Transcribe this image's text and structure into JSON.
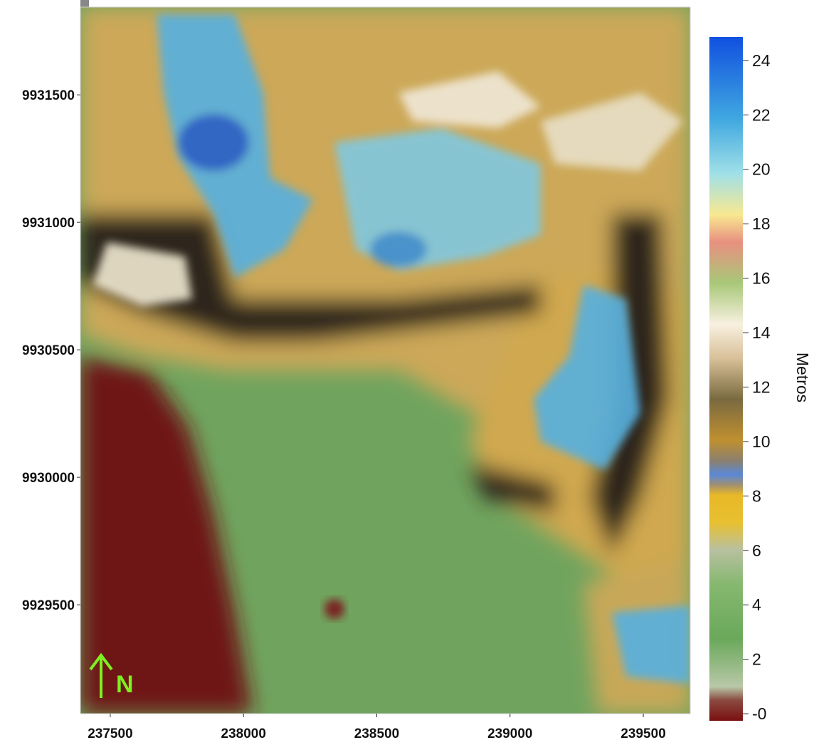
{
  "map": {
    "x_axis": {
      "lim": [
        237388,
        239676
      ],
      "ticks": [
        237500,
        238000,
        238500,
        239000,
        239500
      ]
    },
    "y_axis": {
      "lim": [
        9929073,
        9931844
      ],
      "ticks": [
        9929500,
        9930000,
        9930500,
        9931000,
        9931500
      ]
    },
    "north_label": "N"
  },
  "colorbar": {
    "label": "Metros",
    "lim": [
      -0.26,
      24.86
    ],
    "ticks": [
      {
        "value": 0,
        "label": "-0"
      },
      2,
      4,
      6,
      8,
      10,
      12,
      14,
      16,
      18,
      20,
      22,
      24
    ]
  }
}
